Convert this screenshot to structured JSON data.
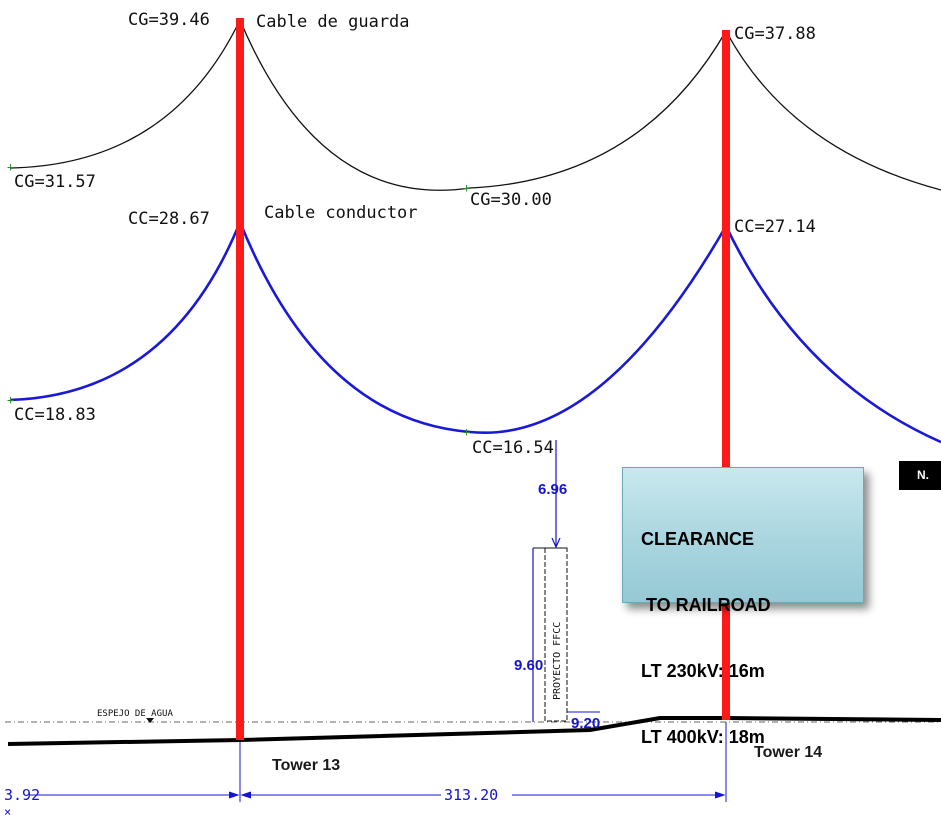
{
  "labels": {
    "cg_tower13": "CG=39.46",
    "cable_guard": "Cable de guarda",
    "cg_tower14": "CG=37.88",
    "cg_left": "CG=31.57",
    "cg_mid": "CG=30.00",
    "cc_tower13": "CC=28.67",
    "cable_conductor": "Cable conductor",
    "cc_tower14": "CC=27.14",
    "cc_left": "CC=18.83",
    "cc_mid": "CC=16.54",
    "water_mirror": "ESPEJO DE AGUA",
    "ffcc_project": "PROYECTO FFCC"
  },
  "dimensions": {
    "clearance_gap": "6.96",
    "ffcc_height": "9.60",
    "ffcc_base": "9.20",
    "span_left": "3.92",
    "span_main": "313.20"
  },
  "towers": {
    "tower13": "Tower 13",
    "tower14": "Tower 14"
  },
  "callout": {
    "line1": "CLEARANCE",
    "line2": " TO RAILROAD",
    "line3": "LT 230kV: 16m",
    "line4": "LT 400kV: 18m"
  },
  "corner_tag": "N.",
  "colors": {
    "tower": "#ff1a1a",
    "conductor": "#1a1ad6",
    "dimension": "#1414d2",
    "callout_bg": "#a9d5df"
  }
}
